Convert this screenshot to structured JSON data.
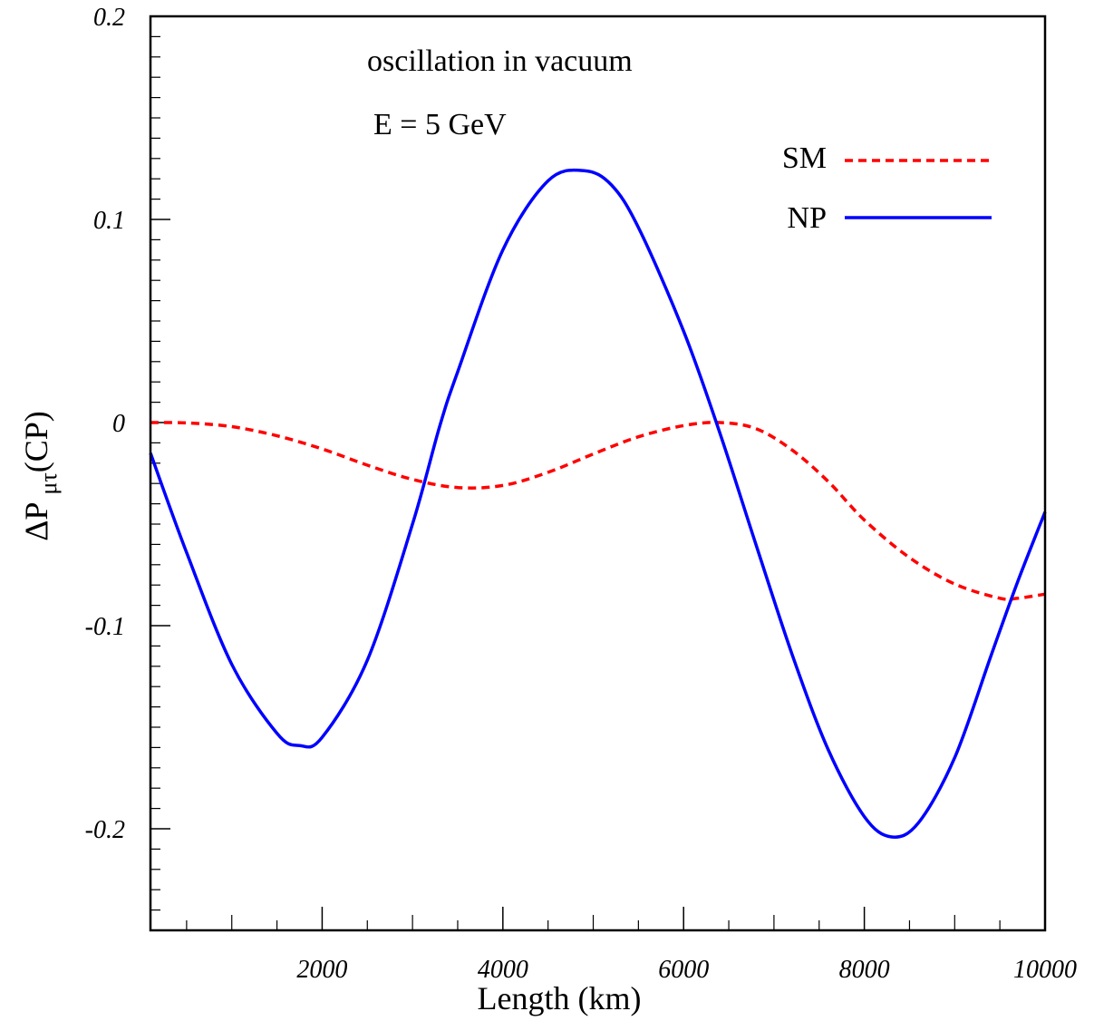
{
  "chart_data": {
    "type": "line",
    "title": "",
    "xlabel": "Length (km)",
    "ylabel": {
      "main": "ΔP",
      "sub": "μτ",
      "tail": "(CP)"
    },
    "xlim": [
      100,
      10000
    ],
    "ylim": [
      -0.25,
      0.2
    ],
    "xticks": [
      2000,
      4000,
      6000,
      8000,
      10000
    ],
    "xtick_labels": [
      "2000",
      "4000",
      "6000",
      "8000",
      "10000"
    ],
    "yticks": [
      0.2,
      0.1,
      0,
      -0.1,
      -0.2
    ],
    "ytick_labels": [
      "0.2",
      "0.1",
      "0",
      "-0.1",
      "-0.2"
    ],
    "grid": false,
    "legend_position": "top-right",
    "annotations": [
      "oscillation in vacuum",
      "E = 5 GeV"
    ],
    "series": [
      {
        "name": "SM",
        "color": "#ff0000",
        "style": "dashed",
        "x": [
          100,
          500,
          1000,
          1500,
          2000,
          2500,
          3000,
          3500,
          4000,
          4500,
          5000,
          5500,
          6000,
          6400,
          6800,
          7200,
          7600,
          8000,
          8500,
          9000,
          9500,
          9700,
          10000
        ],
        "y": [
          0.0,
          -0.0002,
          -0.002,
          -0.0065,
          -0.013,
          -0.021,
          -0.028,
          -0.032,
          -0.031,
          -0.0245,
          -0.0155,
          -0.007,
          -0.0015,
          0.0,
          -0.003,
          -0.0135,
          -0.029,
          -0.048,
          -0.0665,
          -0.0795,
          -0.0865,
          -0.0865,
          -0.0845
        ]
      },
      {
        "name": "NP",
        "color": "#0000ff",
        "style": "solid",
        "x": [
          100,
          500,
          1000,
          1500,
          1750,
          2000,
          2500,
          3000,
          3300,
          3500,
          4000,
          4500,
          4900,
          5200,
          5500,
          6000,
          6400,
          6800,
          7200,
          7600,
          8000,
          8300,
          8600,
          9000,
          9400,
          9700,
          10000
        ],
        "y": [
          -0.015,
          -0.064,
          -0.119,
          -0.153,
          -0.159,
          -0.155,
          -0.117,
          -0.05,
          -0.002,
          0.025,
          0.085,
          0.119,
          0.124,
          0.117,
          0.096,
          0.045,
          -0.005,
          -0.06,
          -0.114,
          -0.161,
          -0.194,
          -0.204,
          -0.197,
          -0.165,
          -0.115,
          -0.078,
          -0.044
        ]
      }
    ]
  }
}
